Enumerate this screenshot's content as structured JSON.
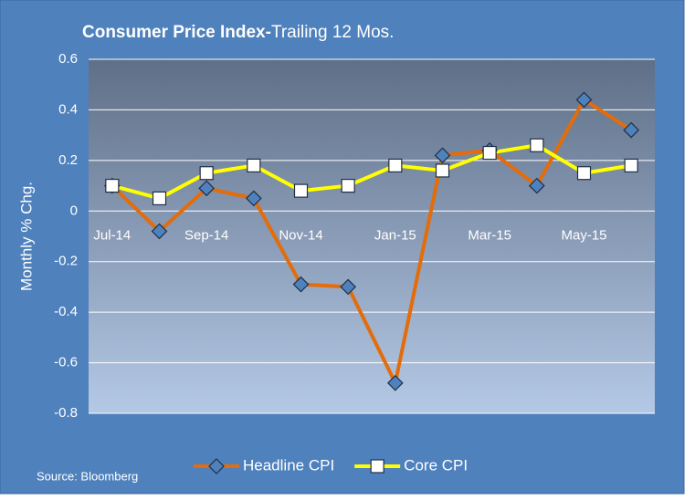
{
  "chart_data": {
    "type": "line",
    "title": [
      "Consumer Price Index-",
      "Trailing 12 Mos."
    ],
    "y_label": "Monthly % Chg.",
    "source": "Source: Bloomberg",
    "categories": [
      "Jul-14",
      null,
      "Sep-14",
      null,
      "Nov-14",
      null,
      "Jan-15",
      null,
      "Mar-15",
      null,
      "May-15",
      null
    ],
    "series": [
      {
        "name": "Headline CPI",
        "color": "#e46c0a",
        "marker": "diamond",
        "marker_color": "#4f81bd",
        "values": [
          0.1,
          -0.08,
          0.09,
          0.05,
          -0.29,
          -0.3,
          -0.68,
          0.22,
          0.24,
          0.1,
          0.44,
          0.32
        ]
      },
      {
        "name": "Core CPI",
        "color": "#ffff00",
        "marker": "square",
        "marker_color": "#ffffff",
        "values": [
          0.1,
          0.05,
          0.15,
          0.18,
          0.08,
          0.1,
          0.18,
          0.16,
          0.23,
          0.26,
          0.15,
          0.18
        ]
      }
    ],
    "ylim": [
      -0.8,
      0.6
    ],
    "yticks": [
      -0.8,
      -0.6,
      -0.4,
      -0.2,
      0,
      0.2,
      0.4,
      0.6
    ],
    "grid": true,
    "legend": "bottom"
  }
}
